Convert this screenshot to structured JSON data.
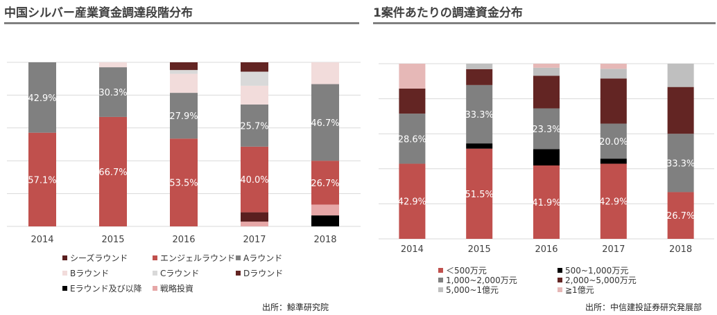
{
  "chart_data": [
    {
      "type": "bar",
      "stacked": true,
      "title": "中国シルバー産業資金調達段階分布",
      "categories": [
        "2014",
        "2015",
        "2016",
        "2017",
        "2018"
      ],
      "ylim": [
        0,
        100
      ],
      "grid": true,
      "legend_position": "bottom",
      "series": [
        {
          "name": "Eラウンド及び以降",
          "color": "#000000",
          "values": [
            0,
            0,
            0,
            0,
            6.7
          ]
        },
        {
          "name": "戦略投資",
          "color": "#E6A7A7",
          "values": [
            0,
            0,
            0,
            2.9,
            6.6
          ]
        },
        {
          "name": "シーズラウンド",
          "color": "#5A1F1F",
          "values": [
            0,
            0,
            0,
            5.7,
            0
          ]
        },
        {
          "name": "エンジェルラウンド",
          "color": "#C0504D",
          "values": [
            57.1,
            66.7,
            53.5,
            40.0,
            26.7
          ]
        },
        {
          "name": "Aラウンド",
          "color": "#808080",
          "values": [
            42.9,
            30.3,
            27.9,
            25.7,
            46.7
          ]
        },
        {
          "name": "Bラウンド",
          "color": "#F2DCDB",
          "values": [
            0,
            3.0,
            11.6,
            11.4,
            13.3
          ]
        },
        {
          "name": "Cラウンド",
          "color": "#D9D9D9",
          "values": [
            0,
            0,
            2.3,
            8.6,
            0
          ]
        },
        {
          "name": "Dラウンド",
          "color": "#632523",
          "values": [
            0,
            0,
            4.7,
            5.7,
            0
          ]
        }
      ],
      "data_labels": [
        {
          "series": "エンジェルラウンド",
          "values": [
            "57.1%",
            "66.7%",
            "53.5%",
            "40.0%",
            "26.7%"
          ]
        },
        {
          "series": "Aラウンド",
          "values": [
            "42.9%",
            "30.3%",
            "27.9%",
            "25.7%",
            "46.7%"
          ]
        }
      ],
      "legend_rows": [
        [
          "シーズラウンド",
          "エンジェルラウンド",
          "Aラウンド"
        ],
        [
          "Bラウンド",
          "Cラウンド",
          "Dラウンド"
        ],
        [
          "Eラウンド及び以降",
          "戦略投資"
        ]
      ],
      "source": "出所：鯨準研究院"
    },
    {
      "type": "bar",
      "stacked": true,
      "title": "1案件あたりの調達資金分布",
      "categories": [
        "2014",
        "2015",
        "2016",
        "2017",
        "2018"
      ],
      "ylim": [
        0,
        100
      ],
      "grid": true,
      "legend_position": "bottom",
      "series": [
        {
          "name": "＜500万元",
          "color": "#C0504D",
          "values": [
            42.9,
            51.5,
            41.9,
            42.9,
            26.7
          ]
        },
        {
          "name": "500~1,000万元",
          "color": "#000000",
          "values": [
            0,
            3.0,
            9.3,
            2.9,
            0
          ]
        },
        {
          "name": "1,000~2,000万元",
          "color": "#808080",
          "values": [
            28.6,
            33.3,
            23.3,
            20.0,
            33.3
          ]
        },
        {
          "name": "2,000~5,000万元",
          "color": "#632523",
          "values": [
            14.3,
            9.1,
            18.6,
            25.7,
            26.7
          ]
        },
        {
          "name": "5,000~1億元",
          "color": "#BFBFBF",
          "values": [
            0,
            3.1,
            4.6,
            5.6,
            13.3
          ]
        },
        {
          "name": "≧1億元",
          "color": "#E6B8B7",
          "values": [
            14.2,
            0,
            2.3,
            2.9,
            0
          ]
        }
      ],
      "data_labels": [
        {
          "series": "＜500万元",
          "values": [
            "42.9%",
            "51.5%",
            "41.9%",
            "42.9%",
            "26.7%"
          ]
        },
        {
          "series": "1,000~2,000万元",
          "values": [
            "28.6%",
            "33.3%",
            "23.3%",
            "20.0%",
            "33.3%"
          ]
        }
      ],
      "legend_rows": [
        [
          "＜500万元",
          "500~1,000万元"
        ],
        [
          "1,000~2,000万元",
          "2,000~5,000万元"
        ],
        [
          "5,000~1億元",
          "≧1億元"
        ]
      ],
      "source": "出所：中信建投証券研究発展部"
    }
  ]
}
